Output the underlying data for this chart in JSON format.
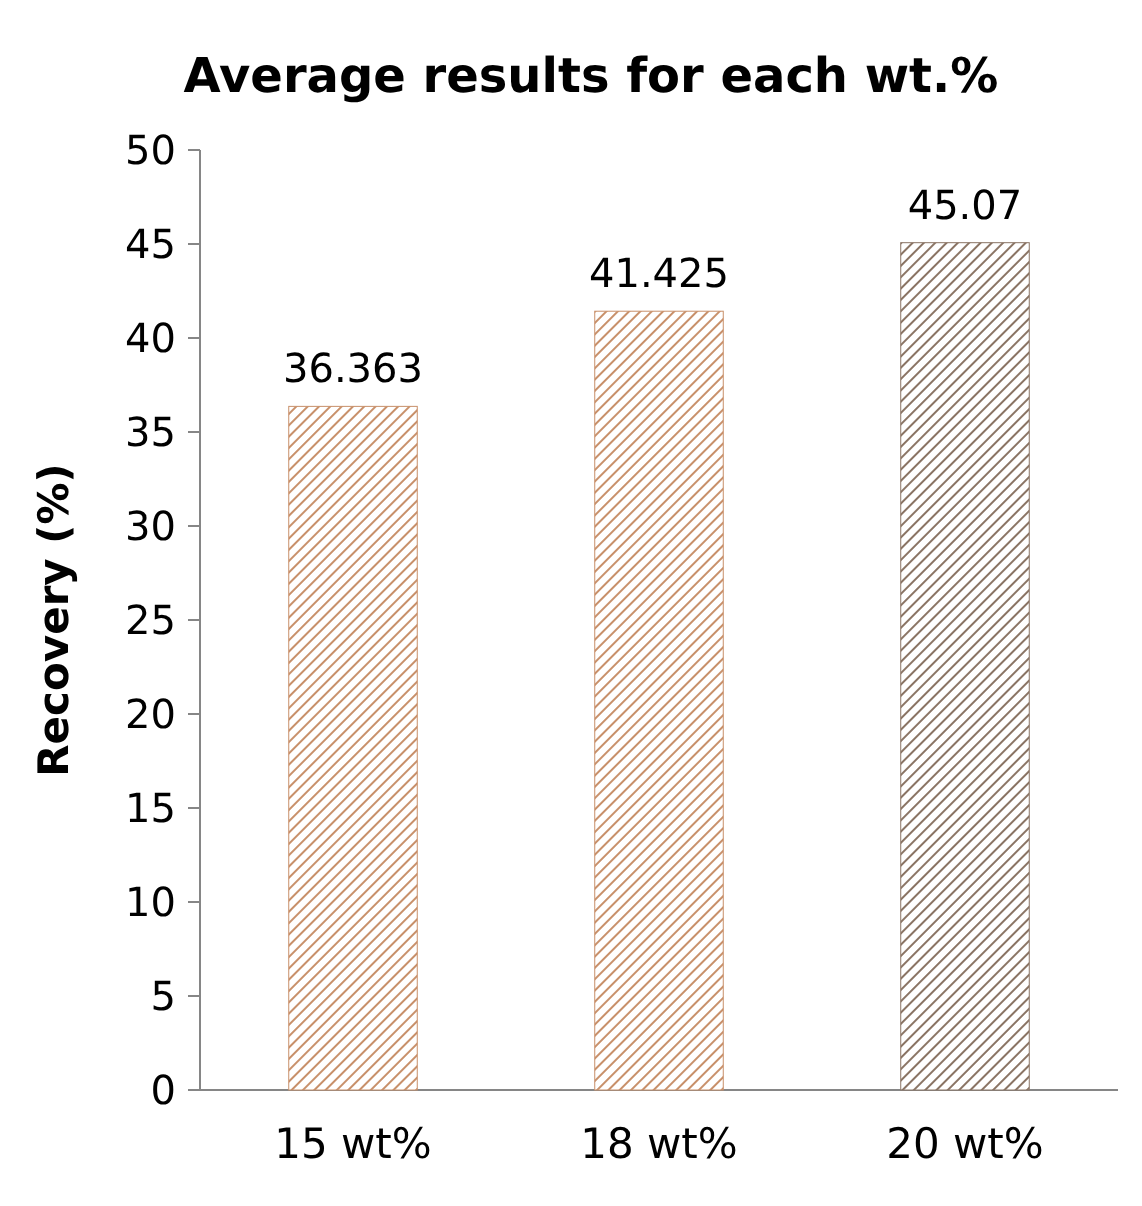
{
  "chart_data": {
    "type": "bar",
    "title": "Average results for each wt.%",
    "ylabel": "Recovery (%)",
    "categories": [
      "15 wt%",
      "18 wt%",
      "20 wt%"
    ],
    "values": [
      36.363,
      41.425,
      45.07
    ],
    "colors": [
      "#c8906a",
      "#c8906a",
      "#8a7464"
    ],
    "ylim": [
      0,
      50
    ],
    "yticks": [
      0,
      5,
      10,
      15,
      20,
      25,
      30,
      35,
      40,
      45,
      50
    ],
    "grid": false,
    "data_labels": true
  }
}
